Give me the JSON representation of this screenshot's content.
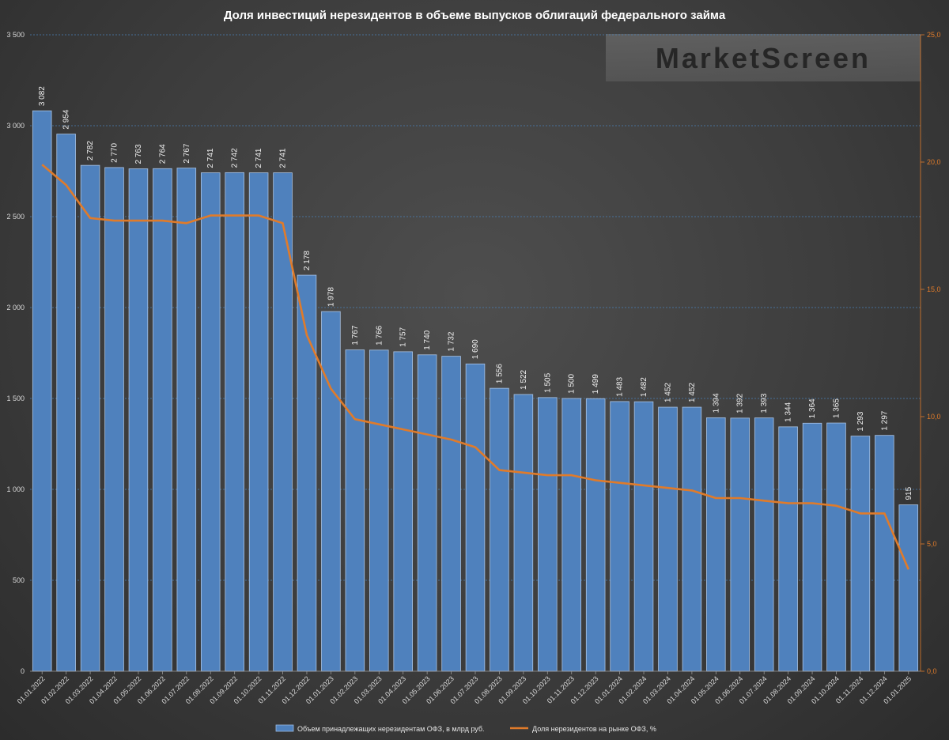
{
  "chart_data": {
    "type": "bar",
    "title": "Доля инвестиций нерезидентов в объеме выпусков облигаций федерального займа",
    "watermark": "MarketScreen",
    "categories": [
      "01.01.2022",
      "01.02.2022",
      "01.03.2022",
      "01.04.2022",
      "01.05.2022",
      "01.06.2022",
      "01.07.2022",
      "01.08.2022",
      "01.09.2022",
      "01.10.2022",
      "01.11.2022",
      "01.12.2022",
      "01.01.2023",
      "01.02.2023",
      "01.03.2023",
      "01.04.2023",
      "01.05.2023",
      "01.06.2023",
      "01.07.2023",
      "01.08.2023",
      "01.09.2023",
      "01.10.2023",
      "01.11.2023",
      "01.12.2023",
      "01.01.2024",
      "01.02.2024",
      "01.03.2024",
      "01.04.2024",
      "01.05.2024",
      "01.06.2024",
      "01.07.2024",
      "01.08.2024",
      "01.09.2024",
      "01.10.2024",
      "01.11.2024",
      "01.12.2024",
      "01.01.2025"
    ],
    "series": [
      {
        "name": "Объем принадлежащих нерезидентам ОФЗ, в млрд руб.",
        "kind": "bar",
        "axis": "left",
        "color": "#4f81bd",
        "values": [
          3082,
          2954,
          2782,
          2770,
          2763,
          2764,
          2767,
          2741,
          2742,
          2741,
          2741,
          2178,
          1978,
          1767,
          1766,
          1757,
          1740,
          1732,
          1690,
          1556,
          1522,
          1505,
          1500,
          1499,
          1483,
          1482,
          1452,
          1452,
          1394,
          1392,
          1393,
          1344,
          1364,
          1365,
          1293,
          1297,
          915
        ],
        "labels": [
          "3 082",
          "2 954",
          "2 782",
          "2 770",
          "2 763",
          "2 764",
          "2 767",
          "2 741",
          "2 742",
          "2 741",
          "2 741",
          "2 178",
          "1 978",
          "1 767",
          "1 766",
          "1 757",
          "1 740",
          "1 732",
          "1 690",
          "1 556",
          "1 522",
          "1 505",
          "1 500",
          "1 499",
          "1 483",
          "1 482",
          "1 452",
          "1 452",
          "1 394",
          "1 392",
          "1 393",
          "1 344",
          "1 364",
          "1 365",
          "1 293",
          "1 297",
          "915"
        ]
      },
      {
        "name": "Доля нерезидентов на рынке ОФЗ, %",
        "kind": "line",
        "axis": "right",
        "color": "#e07b2a",
        "values": [
          19.9,
          19.1,
          17.8,
          17.7,
          17.7,
          17.7,
          17.6,
          17.9,
          17.9,
          17.9,
          17.6,
          13.2,
          11.1,
          9.9,
          9.7,
          9.5,
          9.3,
          9.1,
          8.8,
          7.9,
          7.8,
          7.7,
          7.7,
          7.5,
          7.4,
          7.3,
          7.2,
          7.1,
          6.8,
          6.8,
          6.7,
          6.6,
          6.6,
          6.5,
          6.2,
          6.2,
          4.0
        ]
      }
    ],
    "y_left": {
      "min": 0,
      "max": 3500,
      "ticks": [
        "0",
        "500",
        "1 000",
        "1 500",
        "2 000",
        "2 500",
        "3 000",
        "3 500"
      ]
    },
    "y_right": {
      "min": 0,
      "max": 25,
      "ticks": [
        "0,0",
        "5,0",
        "10,0",
        "15,0",
        "20,0",
        "25,0"
      ]
    },
    "grid": "dashed-horizontal",
    "legend_position": "bottom"
  }
}
